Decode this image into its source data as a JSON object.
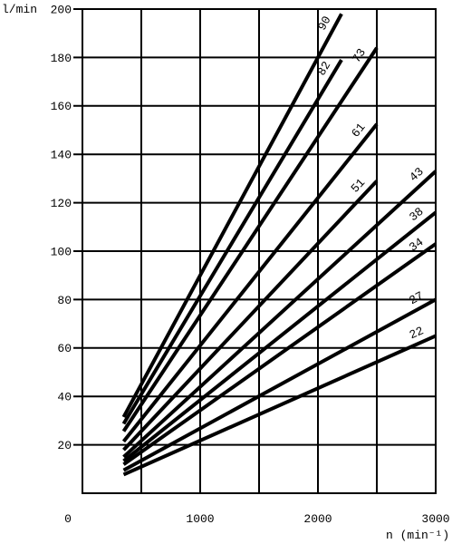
{
  "chart_data": {
    "type": "line",
    "y_label": "l/min",
    "x_label": "n (min⁻¹)",
    "xlim": [
      0,
      3000
    ],
    "ylim": [
      0,
      200
    ],
    "xticks": [
      0,
      1000,
      2000,
      3000
    ],
    "xgrid": [
      500,
      1500,
      2500
    ],
    "yticks": [
      20,
      40,
      60,
      80,
      100,
      120,
      140,
      160,
      180,
      200
    ],
    "grid": true,
    "color": "#000000",
    "series": [
      {
        "name": "90",
        "x": [
          350,
          2200
        ],
        "values": [
          31.5,
          198
        ]
      },
      {
        "name": "82",
        "x": [
          350,
          2200
        ],
        "values": [
          28.7,
          179
        ]
      },
      {
        "name": "73",
        "x": [
          350,
          2500
        ],
        "values": [
          25.6,
          184
        ]
      },
      {
        "name": "61",
        "x": [
          350,
          2500
        ],
        "values": [
          21.4,
          152.5
        ]
      },
      {
        "name": "51",
        "x": [
          350,
          2500
        ],
        "values": [
          17.9,
          129
        ]
      },
      {
        "name": "43",
        "x": [
          350,
          3000
        ],
        "values": [
          15,
          133
        ]
      },
      {
        "name": "38",
        "x": [
          350,
          3000
        ],
        "values": [
          13.3,
          116
        ]
      },
      {
        "name": "34",
        "x": [
          350,
          3000
        ],
        "values": [
          11.9,
          103
        ]
      },
      {
        "name": "27",
        "x": [
          350,
          3000
        ],
        "values": [
          9.5,
          80
        ]
      },
      {
        "name": "22",
        "x": [
          350,
          3000
        ],
        "values": [
          7.7,
          65
        ]
      }
    ]
  }
}
